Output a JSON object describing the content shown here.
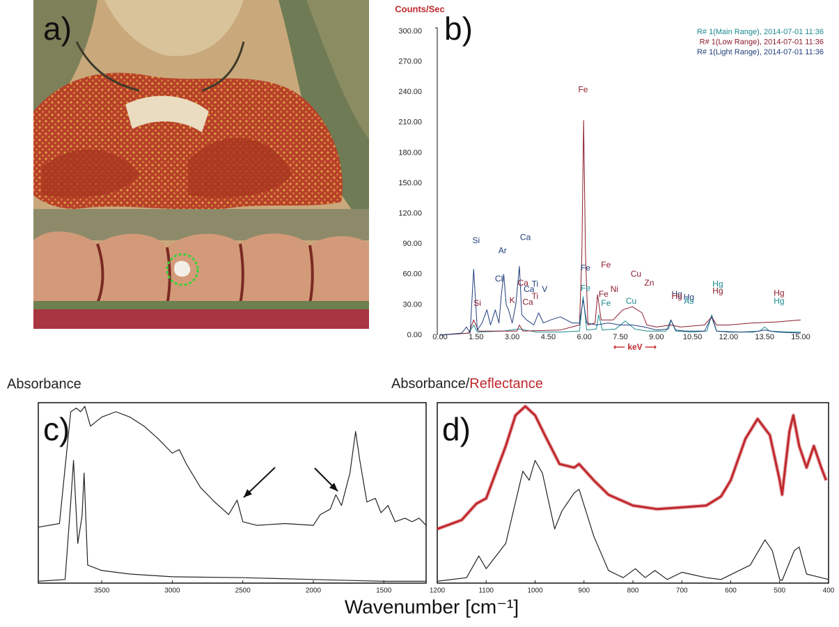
{
  "photo": {
    "panel_label": "a)"
  },
  "shared_xlabel": "Wavenumber [cm⁻¹]",
  "chart_data": [
    {
      "type": "line",
      "panel_label": "b)",
      "ylabel": "Counts/Sec",
      "ylabel_color": "#c0282d",
      "xlabel": "⟵ keV ⟶",
      "xlabel_color": "#c0282d",
      "xlim": [
        0,
        15
      ],
      "ylim": [
        0,
        300
      ],
      "xticks": [
        {
          "value": 0,
          "label": "0.00"
        },
        {
          "value": 1.5,
          "label": "1.50"
        },
        {
          "value": 3,
          "label": "3.00"
        },
        {
          "value": 4.5,
          "label": "4.50"
        },
        {
          "value": 6,
          "label": "6.00"
        },
        {
          "value": 7.5,
          "label": "7.50"
        },
        {
          "value": 9,
          "label": "9.00"
        },
        {
          "value": 10.5,
          "label": "10.50"
        },
        {
          "value": 12,
          "label": "12.00"
        },
        {
          "value": 13.5,
          "label": "13.50"
        },
        {
          "value": 15,
          "label": "15.00"
        }
      ],
      "yticks": [
        {
          "value": 0,
          "label": "0.00"
        },
        {
          "value": 30,
          "label": "30.00"
        },
        {
          "value": 60,
          "label": "60.00"
        },
        {
          "value": 90,
          "label": "90.00"
        },
        {
          "value": 120,
          "label": "120.00"
        },
        {
          "value": 150,
          "label": "150.00"
        },
        {
          "value": 180,
          "label": "180.00"
        },
        {
          "value": 210,
          "label": "210.00"
        },
        {
          "value": 240,
          "label": "240.00"
        },
        {
          "value": 270,
          "label": "270.00"
        },
        {
          "value": 300,
          "label": "300.00"
        }
      ],
      "legend": "upper right",
      "series": [
        {
          "name": "R# 1(Main Range), 2014-07-01 11:36",
          "color": "#1a8a8f",
          "width": 1,
          "x": [
            0,
            1.2,
            1.4,
            1.55,
            2.6,
            3.3,
            4.0,
            5.0,
            5.8,
            5.95,
            6.1,
            6.5,
            6.6,
            6.75,
            7.3,
            7.7,
            8.1,
            8.6,
            9.4,
            9.6,
            9.8,
            10.5,
            11.1,
            11.3,
            11.5,
            12.5,
            13.3,
            13.5,
            13.7,
            14.5,
            15
          ],
          "values": [
            0,
            2,
            10,
            3,
            4,
            6,
            3,
            3,
            4,
            38,
            5,
            6,
            20,
            5,
            6,
            14,
            6,
            4,
            4,
            15,
            4,
            3,
            4,
            20,
            4,
            3,
            4,
            8,
            4,
            3,
            3
          ]
        },
        {
          "name": "R# 1(Low Range), 2014-07-01 11:36",
          "color": "#8b1a2b",
          "width": 1,
          "x": [
            0,
            1.2,
            1.4,
            1.6,
            3.2,
            3.3,
            3.45,
            5.0,
            5.8,
            5.9,
            5.97,
            6.05,
            6.15,
            6.45,
            6.55,
            6.7,
            7.2,
            7.6,
            8.0,
            8.4,
            8.6,
            9.0,
            9.6,
            10.0,
            11.0,
            11.3,
            11.5,
            12.0,
            13.0,
            14.0,
            15.0
          ],
          "values": [
            0,
            2,
            15,
            4,
            4,
            10,
            4,
            5,
            10,
            80,
            212,
            80,
            10,
            12,
            40,
            15,
            15,
            25,
            28,
            22,
            10,
            8,
            10,
            8,
            10,
            18,
            10,
            10,
            12,
            13,
            15
          ]
        },
        {
          "name": "R# 1(Light Range), 2014-07-01 11:36",
          "color": "#1f3d7a",
          "width": 1,
          "x": [
            0,
            0.9,
            1.1,
            1.25,
            1.4,
            1.55,
            1.75,
            1.95,
            2.1,
            2.3,
            2.45,
            2.55,
            2.65,
            2.75,
            2.85,
            3.0,
            3.15,
            3.3,
            3.4,
            3.6,
            3.9,
            4.1,
            4.3,
            4.6,
            5.0,
            5.5,
            5.8,
            5.95,
            6.1,
            6.5,
            7.0,
            7.5,
            8.0,
            8.5,
            9.0,
            9.5,
            9.6,
            9.8,
            10.2,
            11.0,
            11.3,
            11.5,
            12.0,
            13.0,
            13.5,
            14.0,
            15.0
          ],
          "values": [
            0,
            2,
            8,
            2,
            65,
            5,
            12,
            25,
            10,
            25,
            12,
            40,
            60,
            30,
            25,
            12,
            30,
            68,
            20,
            15,
            10,
            22,
            12,
            15,
            18,
            12,
            12,
            35,
            12,
            10,
            12,
            10,
            10,
            8,
            5,
            6,
            15,
            5,
            4,
            4,
            18,
            4,
            3,
            3,
            5,
            3,
            2
          ]
        }
      ],
      "annotations": [
        {
          "text": "Si",
          "x": 1.5,
          "y": 93,
          "color": "#1f3d7a"
        },
        {
          "text": "Ar",
          "x": 2.6,
          "y": 83,
          "color": "#1f3d7a"
        },
        {
          "text": "Ca",
          "x": 3.55,
          "y": 96,
          "color": "#1f3d7a"
        },
        {
          "text": "Cl",
          "x": 2.45,
          "y": 55,
          "color": "#1f3d7a"
        },
        {
          "text": "Ca",
          "x": 3.45,
          "y": 51,
          "color": "#8b1a2b"
        },
        {
          "text": "Ti",
          "x": 3.95,
          "y": 50,
          "color": "#1f3d7a"
        },
        {
          "text": "Ca",
          "x": 3.7,
          "y": 45,
          "color": "#1f3d7a"
        },
        {
          "text": "V",
          "x": 4.35,
          "y": 45,
          "color": "#1f3d7a"
        },
        {
          "text": "Ti",
          "x": 3.95,
          "y": 38,
          "color": "#8b1a2b"
        },
        {
          "text": "K",
          "x": 3.0,
          "y": 34,
          "color": "#8b1a2b"
        },
        {
          "text": "Ca",
          "x": 3.65,
          "y": 32,
          "color": "#8b1a2b"
        },
        {
          "text": "Si",
          "x": 1.55,
          "y": 31,
          "color": "#8b1a2b"
        },
        {
          "text": "Fe",
          "x": 5.95,
          "y": 242,
          "color": "#8b1a2b"
        },
        {
          "text": "Fe",
          "x": 6.05,
          "y": 66,
          "color": "#1f3d7a"
        },
        {
          "text": "Fe",
          "x": 6.9,
          "y": 69,
          "color": "#8b1a2b"
        },
        {
          "text": "Fe",
          "x": 6.05,
          "y": 46,
          "color": "#1a8a8f"
        },
        {
          "text": "Fe",
          "x": 6.8,
          "y": 40,
          "color": "#8b1a2b"
        },
        {
          "text": "Ni",
          "x": 7.25,
          "y": 45,
          "color": "#8b1a2b"
        },
        {
          "text": "Fe",
          "x": 6.9,
          "y": 31,
          "color": "#1a8a8f"
        },
        {
          "text": "Cu",
          "x": 8.15,
          "y": 60,
          "color": "#8b1a2b"
        },
        {
          "text": "Zn",
          "x": 8.7,
          "y": 51,
          "color": "#8b1a2b"
        },
        {
          "text": "Cu",
          "x": 7.95,
          "y": 33,
          "color": "#1a8a8f"
        },
        {
          "text": "Hg",
          "x": 9.85,
          "y": 40,
          "color": "#1f3d7a"
        },
        {
          "text": "Hg",
          "x": 9.85,
          "y": 38,
          "color": "#8b1a2b"
        },
        {
          "text": "Hg",
          "x": 10.35,
          "y": 37,
          "color": "#1f3d7a"
        },
        {
          "text": "As",
          "x": 10.35,
          "y": 33,
          "color": "#1a8a8f"
        },
        {
          "text": "Hg",
          "x": 11.55,
          "y": 50,
          "color": "#1a8a8f"
        },
        {
          "text": "Hg",
          "x": 11.55,
          "y": 43,
          "color": "#8b1a2b"
        },
        {
          "text": "Hg",
          "x": 14.1,
          "y": 41,
          "color": "#8b1a2b"
        },
        {
          "text": "Hg",
          "x": 14.1,
          "y": 33,
          "color": "#1a8a8f"
        }
      ]
    },
    {
      "type": "line",
      "panel_label": "c)",
      "ylabel": "Absorbance",
      "xlim": [
        3950,
        1200
      ],
      "ylim": [
        0,
        1
      ],
      "xticks": [
        3500,
        3000,
        2500,
        2000,
        1500
      ],
      "series": [
        {
          "color": "#222222",
          "width": 1.2,
          "x": [
            3950,
            3800,
            3720,
            3680,
            3650,
            3620,
            3580,
            3500,
            3400,
            3300,
            3200,
            3100,
            3000,
            2950,
            2900,
            2800,
            2700,
            2600,
            2540,
            2500,
            2400,
            2200,
            2000,
            1950,
            1880,
            1840,
            1800,
            1740,
            1700,
            1670,
            1620,
            1560,
            1520,
            1470,
            1420,
            1350,
            1300,
            1250,
            1200
          ],
          "values": [
            0.31,
            0.33,
            0.95,
            0.97,
            0.95,
            0.98,
            0.87,
            0.92,
            0.95,
            0.92,
            0.87,
            0.8,
            0.72,
            0.74,
            0.66,
            0.53,
            0.45,
            0.38,
            0.46,
            0.34,
            0.32,
            0.33,
            0.32,
            0.38,
            0.41,
            0.49,
            0.43,
            0.61,
            0.84,
            0.68,
            0.45,
            0.47,
            0.39,
            0.43,
            0.34,
            0.36,
            0.34,
            0.36,
            0.32
          ]
        },
        {
          "color": "#222222",
          "width": 1.2,
          "x": [
            3950,
            3760,
            3720,
            3700,
            3670,
            3640,
            3625,
            3600,
            3500,
            3300,
            3000,
            2500,
            2000,
            1500,
            1200
          ],
          "values": [
            0.01,
            0.02,
            0.45,
            0.68,
            0.22,
            0.37,
            0.61,
            0.1,
            0.07,
            0.05,
            0.035,
            0.03,
            0.02,
            0.01,
            0.01
          ]
        }
      ]
    },
    {
      "type": "line",
      "panel_label": "d)",
      "ylabel_parts": [
        {
          "text": "Absorbance/",
          "color": "#222222"
        },
        {
          "text": "Reflectance",
          "color": "#c0282d"
        }
      ],
      "xlim": [
        1200,
        400
      ],
      "ylim": [
        0,
        1
      ],
      "xticks": [
        1200,
        1100,
        1000,
        900,
        800,
        700,
        600,
        500,
        400
      ],
      "series": [
        {
          "color": "#c0282d",
          "width": 3,
          "x": [
            1200,
            1150,
            1120,
            1100,
            1060,
            1040,
            1020,
            1000,
            980,
            950,
            920,
            910,
            880,
            850,
            800,
            750,
            700,
            650,
            620,
            600,
            570,
            545,
            520,
            500,
            495,
            480,
            472,
            460,
            445,
            430,
            415,
            405
          ],
          "values": [
            0.3,
            0.35,
            0.44,
            0.47,
            0.76,
            0.93,
            0.98,
            0.93,
            0.82,
            0.66,
            0.64,
            0.66,
            0.57,
            0.49,
            0.43,
            0.41,
            0.42,
            0.43,
            0.48,
            0.57,
            0.8,
            0.91,
            0.82,
            0.57,
            0.49,
            0.84,
            0.93,
            0.76,
            0.64,
            0.76,
            0.64,
            0.57
          ]
        },
        {
          "color": "#222222",
          "width": 1.2,
          "x": [
            1200,
            1140,
            1115,
            1100,
            1060,
            1040,
            1025,
            1012,
            1000,
            985,
            960,
            945,
            920,
            910,
            880,
            850,
            820,
            795,
            775,
            755,
            730,
            700,
            650,
            620,
            560,
            530,
            515,
            500,
            495,
            470,
            460,
            445,
            430,
            415,
            400
          ],
          "values": [
            0.01,
            0.03,
            0.15,
            0.08,
            0.22,
            0.45,
            0.62,
            0.57,
            0.68,
            0.61,
            0.3,
            0.4,
            0.5,
            0.52,
            0.26,
            0.07,
            0.03,
            0.08,
            0.03,
            0.07,
            0.02,
            0.06,
            0.03,
            0.02,
            0.1,
            0.24,
            0.18,
            0.02,
            0.015,
            0.18,
            0.2,
            0.05,
            0.04,
            0.03,
            0.02
          ]
        }
      ]
    }
  ]
}
